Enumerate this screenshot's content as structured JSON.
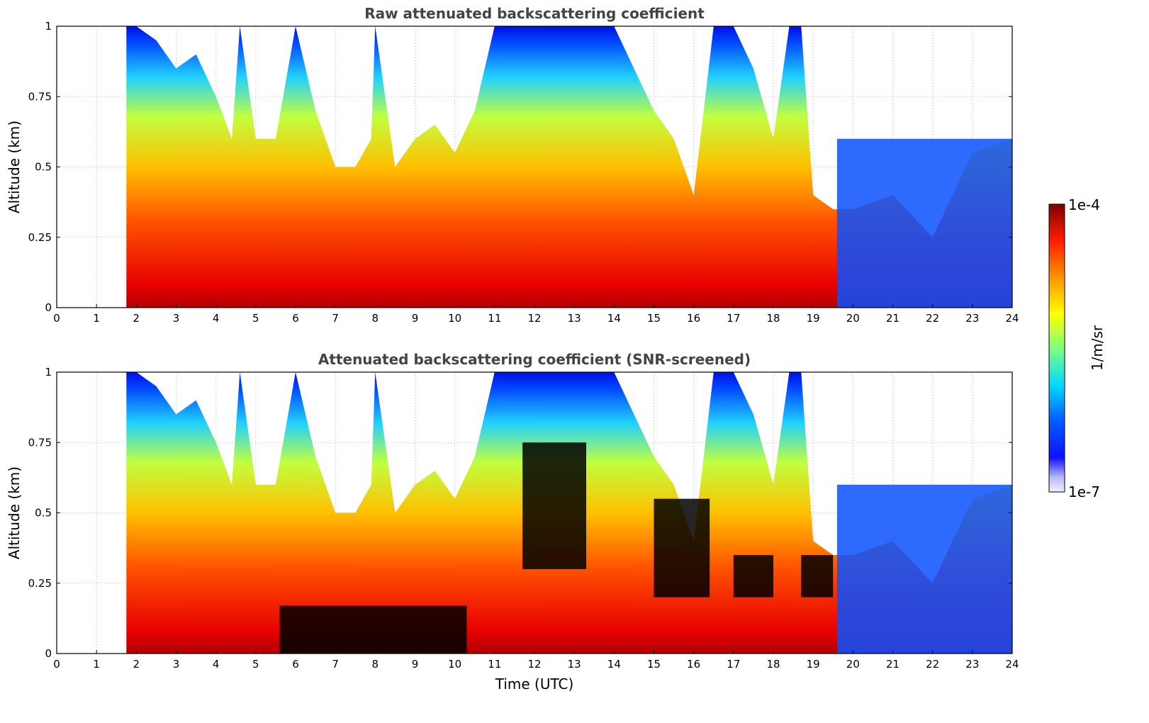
{
  "chart_data": [
    {
      "type": "heatmap",
      "title": "Raw attenuated backscattering coefficient",
      "xlabel": "",
      "ylabel": "Altitude (km)",
      "xlim": [
        0,
        24
      ],
      "ylim": [
        0,
        1
      ],
      "x_ticks": [
        "0",
        "1",
        "2",
        "3",
        "4",
        "5",
        "6",
        "7",
        "8",
        "9",
        "10",
        "11",
        "12",
        "13",
        "14",
        "15",
        "16",
        "17",
        "18",
        "19",
        "20",
        "21",
        "22",
        "23",
        "24"
      ],
      "y_ticks": [
        "0",
        "0.25",
        "0.5",
        "0.75",
        "1"
      ],
      "grid": true,
      "data_start_hour": 1.75,
      "cloud_top_km": [
        [
          1.75,
          1.0
        ],
        [
          2.0,
          1.0
        ],
        [
          2.5,
          0.95
        ],
        [
          3.0,
          0.85
        ],
        [
          3.5,
          0.9
        ],
        [
          4.0,
          0.75
        ],
        [
          4.4,
          0.6
        ],
        [
          4.6,
          1.0
        ],
        [
          5.0,
          0.6
        ],
        [
          5.5,
          0.6
        ],
        [
          6.0,
          1.0
        ],
        [
          6.5,
          0.7
        ],
        [
          7.0,
          0.5
        ],
        [
          7.5,
          0.5
        ],
        [
          7.9,
          0.6
        ],
        [
          8.0,
          1.0
        ],
        [
          8.5,
          0.5
        ],
        [
          9.0,
          0.6
        ],
        [
          9.5,
          0.65
        ],
        [
          10.0,
          0.55
        ],
        [
          10.5,
          0.7
        ],
        [
          11.0,
          1.0
        ],
        [
          12.0,
          1.0
        ],
        [
          13.0,
          1.0
        ],
        [
          14.0,
          1.0
        ],
        [
          15.0,
          0.7
        ],
        [
          15.5,
          0.6
        ],
        [
          16.0,
          0.4
        ],
        [
          16.5,
          1.0
        ],
        [
          17.0,
          1.0
        ],
        [
          17.5,
          0.85
        ],
        [
          18.0,
          0.6
        ],
        [
          18.4,
          1.0
        ],
        [
          18.7,
          1.0
        ],
        [
          19.0,
          0.4
        ],
        [
          19.5,
          0.35
        ],
        [
          20.0,
          0.35
        ],
        [
          21.0,
          0.4
        ],
        [
          22.0,
          0.25
        ],
        [
          23.0,
          0.55
        ],
        [
          24.0,
          0.6
        ]
      ],
      "colorbar": {
        "min_label": "1e-7",
        "max_label": "1e-4",
        "unit": "1/m/sr",
        "scale": "log",
        "colormap": "jet"
      }
    },
    {
      "type": "heatmap",
      "title": "Attenuated backscattering coefficient (SNR-screened)",
      "xlabel": "Time (UTC)",
      "ylabel": "Altitude (km)",
      "xlim": [
        0,
        24
      ],
      "ylim": [
        0,
        1
      ],
      "x_ticks": [
        "0",
        "1",
        "2",
        "3",
        "4",
        "5",
        "6",
        "7",
        "8",
        "9",
        "10",
        "11",
        "12",
        "13",
        "14",
        "15",
        "16",
        "17",
        "18",
        "19",
        "20",
        "21",
        "22",
        "23",
        "24"
      ],
      "y_ticks": [
        "0",
        "0.25",
        "0.5",
        "0.75",
        "1"
      ],
      "grid": true,
      "screened_regions": [
        {
          "x": [
            5.6,
            10.3
          ],
          "y": [
            0,
            0.17
          ]
        },
        {
          "x": [
            11.7,
            13.3
          ],
          "y": [
            0.3,
            0.75
          ]
        },
        {
          "x": [
            15.0,
            16.4
          ],
          "y": [
            0.2,
            0.55
          ]
        },
        {
          "x": [
            17.0,
            18.0
          ],
          "y": [
            0.2,
            0.35
          ]
        },
        {
          "x": [
            18.7,
            19.5
          ],
          "y": [
            0.2,
            0.35
          ]
        }
      ],
      "colorbar": {
        "min_label": "1e-7",
        "max_label": "1e-4",
        "unit": "1/m/sr",
        "scale": "log",
        "colormap": "jet"
      }
    }
  ]
}
